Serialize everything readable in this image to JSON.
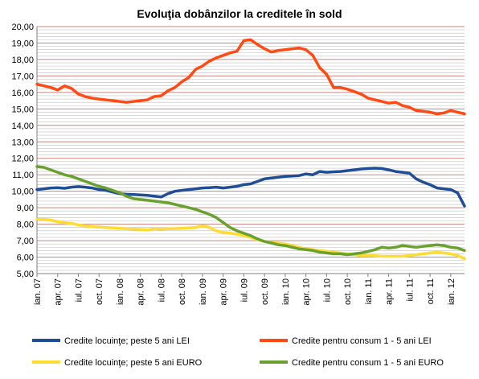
{
  "chart_data": {
    "type": "line",
    "title": "Evoluţia dobânzilor la creditele în sold",
    "xlabel": "",
    "ylabel": "",
    "ylim": [
      5,
      20
    ],
    "y_ticks": [
      "5,00",
      "6,00",
      "7,00",
      "8,00",
      "9,00",
      "10,00",
      "11,00",
      "12,00",
      "13,00",
      "14,00",
      "15,00",
      "16,00",
      "17,00",
      "18,00",
      "19,00",
      "20,00"
    ],
    "grid": true,
    "legend_position": "bottom",
    "x_tick_labels": [
      "ian. 07",
      "apr. 07",
      "iul. 07",
      "oct. 07",
      "ian. 08",
      "apr. 08",
      "iul. 08",
      "oct. 08",
      "ian. 09",
      "apr. 09",
      "iul. 09",
      "oct. 09",
      "ian. 10",
      "apr. 10",
      "iul. 10",
      "oct. 10",
      "ian. 11",
      "apr. 11",
      "iul. 11",
      "oct. 11",
      "ian. 12"
    ],
    "x_tick_start_index": 0,
    "x_tick_step": 3,
    "n_points": 63,
    "series": [
      {
        "name": "Credite locuinţe;  peste 5 ani LEI",
        "color": "#1f4e96",
        "values": [
          10.1,
          10.15,
          10.2,
          10.22,
          10.18,
          10.25,
          10.28,
          10.25,
          10.2,
          10.1,
          10.05,
          9.95,
          9.85,
          9.82,
          9.8,
          9.78,
          9.75,
          9.7,
          9.65,
          9.85,
          10.0,
          10.05,
          10.1,
          10.15,
          10.2,
          10.22,
          10.25,
          10.2,
          10.25,
          10.3,
          10.4,
          10.45,
          10.6,
          10.75,
          10.8,
          10.85,
          10.9,
          10.92,
          10.95,
          11.05,
          11.0,
          11.2,
          11.15,
          11.18,
          11.2,
          11.25,
          11.3,
          11.35,
          11.38,
          11.4,
          11.38,
          11.3,
          11.2,
          11.15,
          11.1,
          10.75,
          10.55,
          10.4,
          10.2,
          10.15,
          10.1,
          9.9,
          9.1
        ]
      },
      {
        "name": "Credite pentru consum 1 - 5 ani LEI",
        "color": "#ff4a14",
        "values": [
          16.5,
          16.4,
          16.3,
          16.15,
          16.4,
          16.25,
          15.9,
          15.75,
          15.65,
          15.6,
          15.55,
          15.5,
          15.45,
          15.4,
          15.45,
          15.5,
          15.55,
          15.75,
          15.8,
          16.1,
          16.3,
          16.65,
          16.9,
          17.4,
          17.6,
          17.9,
          18.1,
          18.25,
          18.4,
          18.5,
          19.15,
          19.2,
          18.9,
          18.65,
          18.45,
          18.55,
          18.6,
          18.65,
          18.7,
          18.6,
          18.25,
          17.5,
          17.1,
          16.3,
          16.3,
          16.2,
          16.05,
          15.9,
          15.65,
          15.55,
          15.45,
          15.35,
          15.4,
          15.2,
          15.1,
          14.9,
          14.85,
          14.8,
          14.7,
          14.75,
          14.9,
          14.8,
          14.7
        ]
      },
      {
        "name": "Credite locuinţe;  peste 5 ani EURO",
        "color": "#ffdc32",
        "values": [
          8.3,
          8.3,
          8.25,
          8.15,
          8.1,
          8.05,
          7.95,
          7.9,
          7.85,
          7.82,
          7.8,
          7.78,
          7.75,
          7.72,
          7.7,
          7.68,
          7.65,
          7.72,
          7.7,
          7.72,
          7.73,
          7.75,
          7.78,
          7.8,
          7.9,
          7.8,
          7.6,
          7.5,
          7.45,
          7.4,
          7.3,
          7.2,
          7.05,
          6.95,
          6.9,
          6.85,
          6.8,
          6.7,
          6.6,
          6.5,
          6.45,
          6.4,
          6.35,
          6.3,
          6.25,
          6.2,
          6.15,
          6.1,
          6.1,
          6.08,
          6.05,
          6.05,
          6.05,
          6.05,
          6.1,
          6.15,
          6.2,
          6.25,
          6.3,
          6.25,
          6.2,
          6.1,
          5.9
        ]
      },
      {
        "name": "Credite pentru consum 1 - 5 ani EURO",
        "color": "#6aa12e",
        "values": [
          11.5,
          11.45,
          11.3,
          11.15,
          11.0,
          10.9,
          10.75,
          10.6,
          10.45,
          10.3,
          10.2,
          10.05,
          9.9,
          9.7,
          9.55,
          9.5,
          9.45,
          9.4,
          9.35,
          9.3,
          9.2,
          9.1,
          9.0,
          8.9,
          8.75,
          8.6,
          8.4,
          8.1,
          7.8,
          7.6,
          7.45,
          7.3,
          7.1,
          6.95,
          6.85,
          6.75,
          6.7,
          6.6,
          6.5,
          6.45,
          6.4,
          6.3,
          6.25,
          6.2,
          6.2,
          6.15,
          6.2,
          6.25,
          6.35,
          6.45,
          6.6,
          6.55,
          6.6,
          6.7,
          6.65,
          6.6,
          6.65,
          6.7,
          6.75,
          6.7,
          6.6,
          6.55,
          6.4
        ]
      }
    ]
  }
}
